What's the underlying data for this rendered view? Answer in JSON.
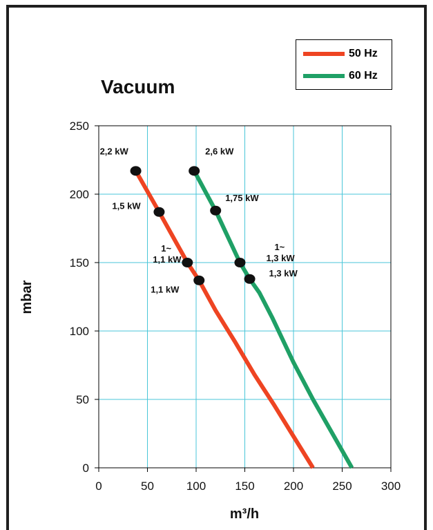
{
  "chart_data": {
    "type": "line",
    "title": "Vacuum",
    "xlabel": "m³/h",
    "ylabel": "mbar",
    "xlim": [
      0,
      300
    ],
    "ylim": [
      0,
      250
    ],
    "xticks": [
      "0",
      "50",
      "100",
      "150",
      "200",
      "250",
      "300"
    ],
    "yticks": [
      "0",
      "50",
      "100",
      "150",
      "200",
      "250"
    ],
    "grid": true,
    "legend_position": "top-right",
    "series": [
      {
        "name": "50 Hz",
        "color": "#ee4422",
        "points": [
          [
            38,
            217
          ],
          [
            62,
            187
          ],
          [
            91,
            150
          ],
          [
            103,
            137
          ],
          [
            120,
            115
          ],
          [
            140,
            92
          ],
          [
            160,
            68
          ],
          [
            180,
            46
          ],
          [
            200,
            23
          ],
          [
            220,
            0
          ]
        ]
      },
      {
        "name": "60 Hz",
        "color": "#1fa066",
        "points": [
          [
            98,
            217
          ],
          [
            120,
            188
          ],
          [
            145,
            150
          ],
          [
            155,
            138
          ],
          [
            165,
            128
          ],
          [
            178,
            110
          ],
          [
            200,
            77
          ],
          [
            220,
            50
          ],
          [
            240,
            25
          ],
          [
            260,
            0
          ]
        ]
      }
    ],
    "markers": [
      {
        "x": 38,
        "y": 217,
        "label": "2,2 kW"
      },
      {
        "x": 62,
        "y": 187,
        "label": "1,5 kW"
      },
      {
        "x": 91,
        "y": 150,
        "label": "1~\n1,1 kW"
      },
      {
        "x": 103,
        "y": 137,
        "label": "1,1 kW"
      },
      {
        "x": 98,
        "y": 217,
        "label": "2,6 kW"
      },
      {
        "x": 120,
        "y": 188,
        "label": "1,75 kW"
      },
      {
        "x": 145,
        "y": 150,
        "label": "1~\n1,3 kW"
      },
      {
        "x": 155,
        "y": 138,
        "label": "1,3 kW"
      }
    ]
  }
}
